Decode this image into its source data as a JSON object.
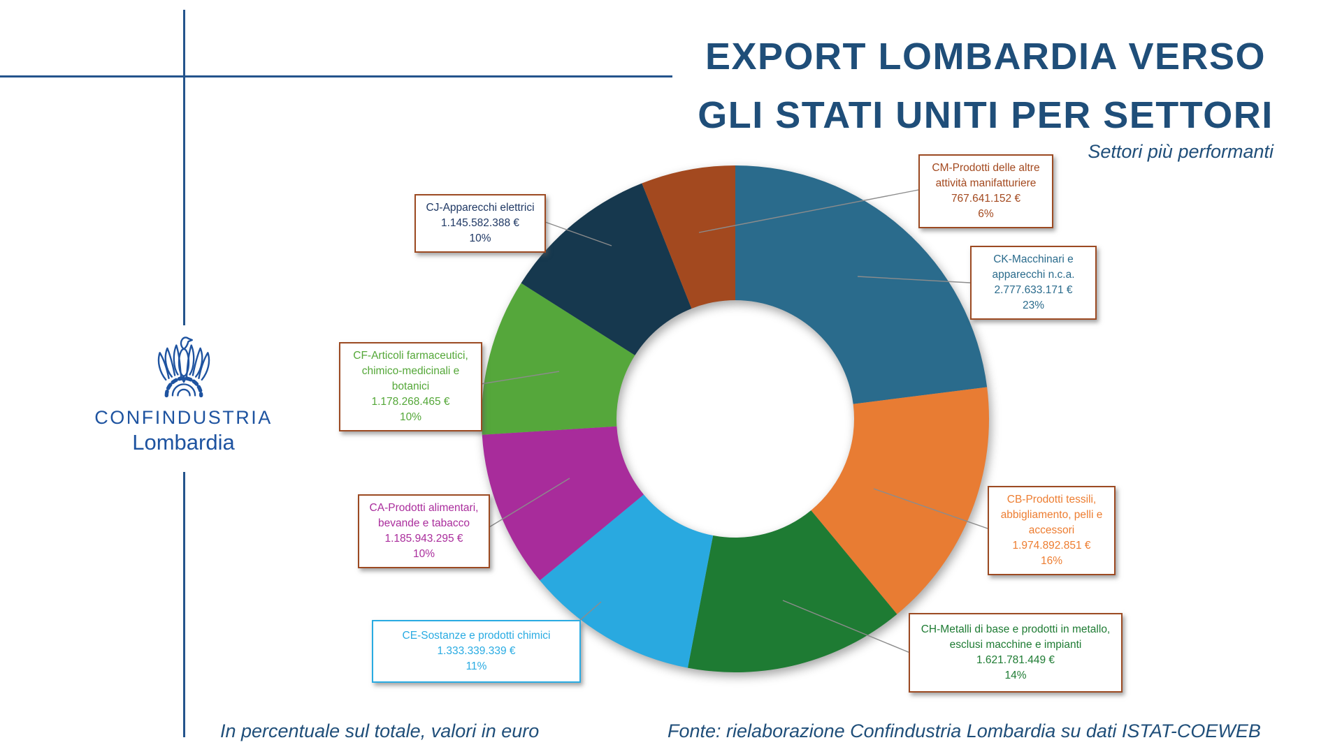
{
  "slide": {
    "title_line1": "EXPORT LOMBARDIA VERSO",
    "title_line2": "GLI STATI UNITI PER SETTORI",
    "subtitle": "Settori più performanti",
    "footnote_left": "In percentuale sul totale, valori in euro",
    "footnote_source": "Fonte: rielaborazione Confindustria Lombardia su dati ISTAT-COEWEB"
  },
  "logo": {
    "org": "CONFINDUSTRIA",
    "region": "Lombardia"
  },
  "colors": {
    "title_blue": "#1F4E79",
    "logo_blue": "#1E53A0",
    "decor_line_blue": "#24548C",
    "callout_border_brown": "#9C4A22",
    "leader_line_gray": "#8C8C8C"
  },
  "chart_data": {
    "type": "pie",
    "subtype": "donut",
    "title": "Export Lombardia verso gli Stati Uniti per settori",
    "units": "EUR",
    "direction": "clockwise",
    "start_angle_deg": 0,
    "legend_position": "callout-boxes",
    "segments": [
      {
        "id": "CK",
        "label": "CK-Macchinari e apparecchi n.c.a.",
        "value": 2777633171,
        "value_label": "2.777.633.171 €",
        "percent_label": "23%",
        "pct": 23,
        "color": "#2A6B8C",
        "text_color": "#2A6B8C",
        "border_color": "#9C4A22"
      },
      {
        "id": "CB",
        "label": "CB-Prodotti tessili, abbigliamento, pelli e accessori",
        "value": 1974892851,
        "value_label": "1.974.892.851 €",
        "percent_label": "16%",
        "pct": 16,
        "color": "#E87C33",
        "text_color": "#ED7D31",
        "border_color": "#9C4A22"
      },
      {
        "id": "CH",
        "label": "CH-Metalli di base e prodotti in metallo, esclusi macchine e impianti",
        "value": 1621781449,
        "value_label": "1.621.781.449 €",
        "percent_label": "14%",
        "pct": 14,
        "color": "#1E7B33",
        "text_color": "#1E7B33",
        "border_color": "#9C4A22"
      },
      {
        "id": "CE",
        "label": "CE-Sostanze e prodotti chimici",
        "value": 1333339339,
        "value_label": "1.333.339.339 €",
        "percent_label": "11%",
        "pct": 11,
        "color": "#29A9E0",
        "text_color": "#29ABE2",
        "border_color": "#29ABE2"
      },
      {
        "id": "CA",
        "label": "CA-Prodotti alimentari, bevande e tabacco",
        "value": 1185943295,
        "value_label": "1.185.943.295 €",
        "percent_label": "10%",
        "pct": 10,
        "color": "#A82C9B",
        "text_color": "#AA2D9C",
        "border_color": "#9C4A22"
      },
      {
        "id": "CF",
        "label": "CF-Articoli farmaceutici, chimico-medicinali e botanici",
        "value": 1178268465,
        "value_label": "1.178.268.465 €",
        "percent_label": "10%",
        "pct": 10,
        "color": "#55A73B",
        "text_color": "#54A738",
        "border_color": "#9C4A22"
      },
      {
        "id": "CJ",
        "label": "CJ-Apparecchi elettrici",
        "value": 1145582388,
        "value_label": "1.145.582.388 €",
        "percent_label": "10%",
        "pct": 10,
        "color": "#16384E",
        "text_color": "#1F3864",
        "border_color": "#9C4A22"
      },
      {
        "id": "CM",
        "label": "CM-Prodotti delle altre attività manifatturiere",
        "value": 767641152,
        "value_label": "767.641.152 €",
        "percent_label": "6%",
        "pct": 6,
        "color": "#A3491F",
        "text_color": "#A3491F",
        "border_color": "#9C4A22"
      }
    ]
  }
}
